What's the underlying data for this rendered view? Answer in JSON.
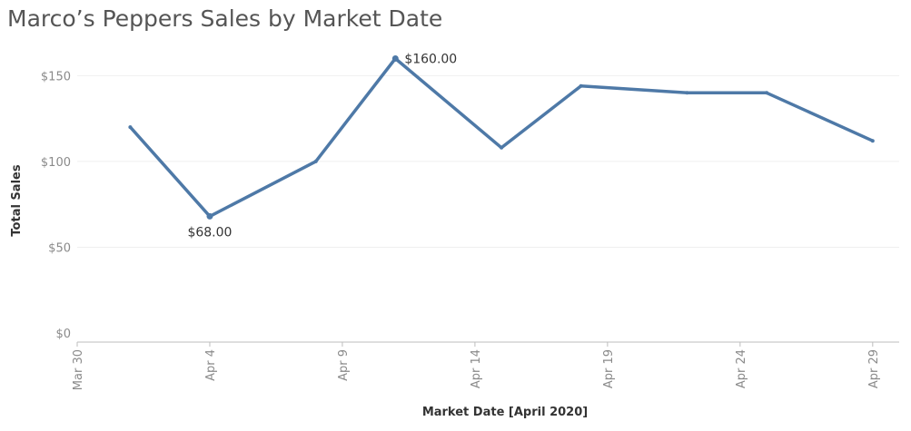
{
  "chart_data": {
    "type": "line",
    "title": "Marco’s Peppers Sales by Market Date",
    "xlabel": "Market Date [April 2020]",
    "ylabel": "Total Sales",
    "xlim": [
      "2020-03-30",
      "2020-04-30"
    ],
    "ylim": [
      0,
      165
    ],
    "yticks": [
      0,
      50,
      100,
      150
    ],
    "ytick_labels": [
      "$0",
      "$50",
      "$100",
      "$150"
    ],
    "xticks": [
      "2020-03-30",
      "2020-04-04",
      "2020-04-09",
      "2020-04-14",
      "2020-04-19",
      "2020-04-24",
      "2020-04-29"
    ],
    "xtick_labels": [
      "Mar 30",
      "Apr 4",
      "Apr 9",
      "Apr 14",
      "Apr 19",
      "Apr 24",
      "Apr 29"
    ],
    "grid": true,
    "color": "#4e79a7",
    "series": [
      {
        "x": [
          "2020-04-01",
          "2020-04-04",
          "2020-04-08",
          "2020-04-11",
          "2020-04-15",
          "2020-04-18",
          "2020-04-22",
          "2020-04-25",
          "2020-04-29"
        ],
        "y": [
          120,
          68,
          100,
          160,
          108,
          144,
          140,
          140,
          112
        ]
      }
    ],
    "annotations": [
      {
        "x": "2020-04-04",
        "y": 68,
        "text": "$68.00",
        "position": "below"
      },
      {
        "x": "2020-04-11",
        "y": 160,
        "text": "$160.00",
        "position": "right"
      }
    ]
  }
}
